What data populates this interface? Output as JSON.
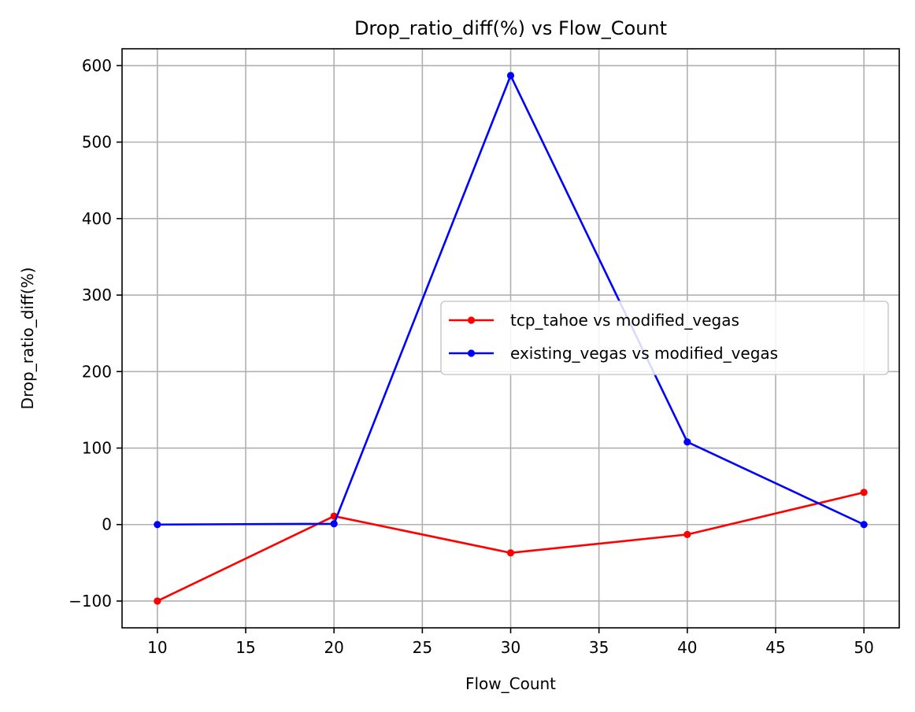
{
  "chart_data": {
    "type": "line",
    "title": "Drop_ratio_diff(%) vs Flow_Count",
    "xlabel": "Flow_Count",
    "ylabel": "Drop_ratio_diff(%)",
    "xlim": [
      8,
      52
    ],
    "ylim": [
      -135,
      622
    ],
    "xticks": [
      10,
      15,
      20,
      25,
      30,
      35,
      40,
      45,
      50
    ],
    "xtick_labels": [
      "10",
      "15",
      "20",
      "25",
      "30",
      "35",
      "40",
      "45",
      "50"
    ],
    "yticks": [
      -100,
      0,
      100,
      200,
      300,
      400,
      500,
      600
    ],
    "ytick_labels": [
      "−100",
      "0",
      "100",
      "200",
      "300",
      "400",
      "500",
      "600"
    ],
    "grid": true,
    "legend_position": "center-right",
    "x": [
      10,
      20,
      30,
      40,
      50
    ],
    "series": [
      {
        "name": "tcp_tahoe vs modified_vegas",
        "color": "#ff0000",
        "marker": "circle",
        "values": [
          -100,
          11,
          -37,
          -13,
          42
        ]
      },
      {
        "name": "existing_vegas vs modified_vegas",
        "color": "#0000ff",
        "marker": "circle",
        "values": [
          0,
          1,
          587,
          108,
          0
        ]
      }
    ]
  }
}
